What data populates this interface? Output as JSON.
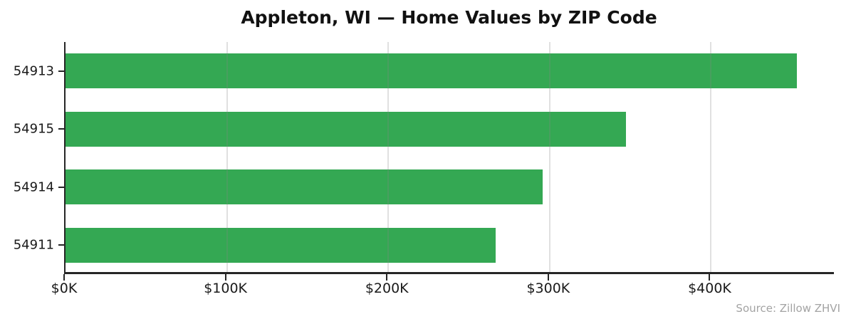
{
  "chart_data": {
    "type": "bar",
    "orientation": "horizontal",
    "title": "Appleton, WI — Home Values by ZIP Code",
    "categories": [
      "54913",
      "54915",
      "54914",
      "54911"
    ],
    "values": [
      454000,
      348000,
      296000,
      267000
    ],
    "xlabel": "",
    "ylabel": "",
    "xlim": [
      0,
      477000
    ],
    "x_ticks": [
      {
        "value": 0,
        "label": "$0K"
      },
      {
        "value": 100000,
        "label": "$100K"
      },
      {
        "value": 200000,
        "label": "$200K"
      },
      {
        "value": 300000,
        "label": "$300K"
      },
      {
        "value": 400000,
        "label": "$400K"
      }
    ],
    "grid": "x-only, drawn above bars",
    "legend": "none",
    "source": "Source: Zillow ZHVI",
    "colors": {
      "bar": "#34a853",
      "axis": "#262626",
      "tick_text": "#1a1a1a",
      "grid": "#828282",
      "source_text": "#a3a3a3"
    }
  }
}
